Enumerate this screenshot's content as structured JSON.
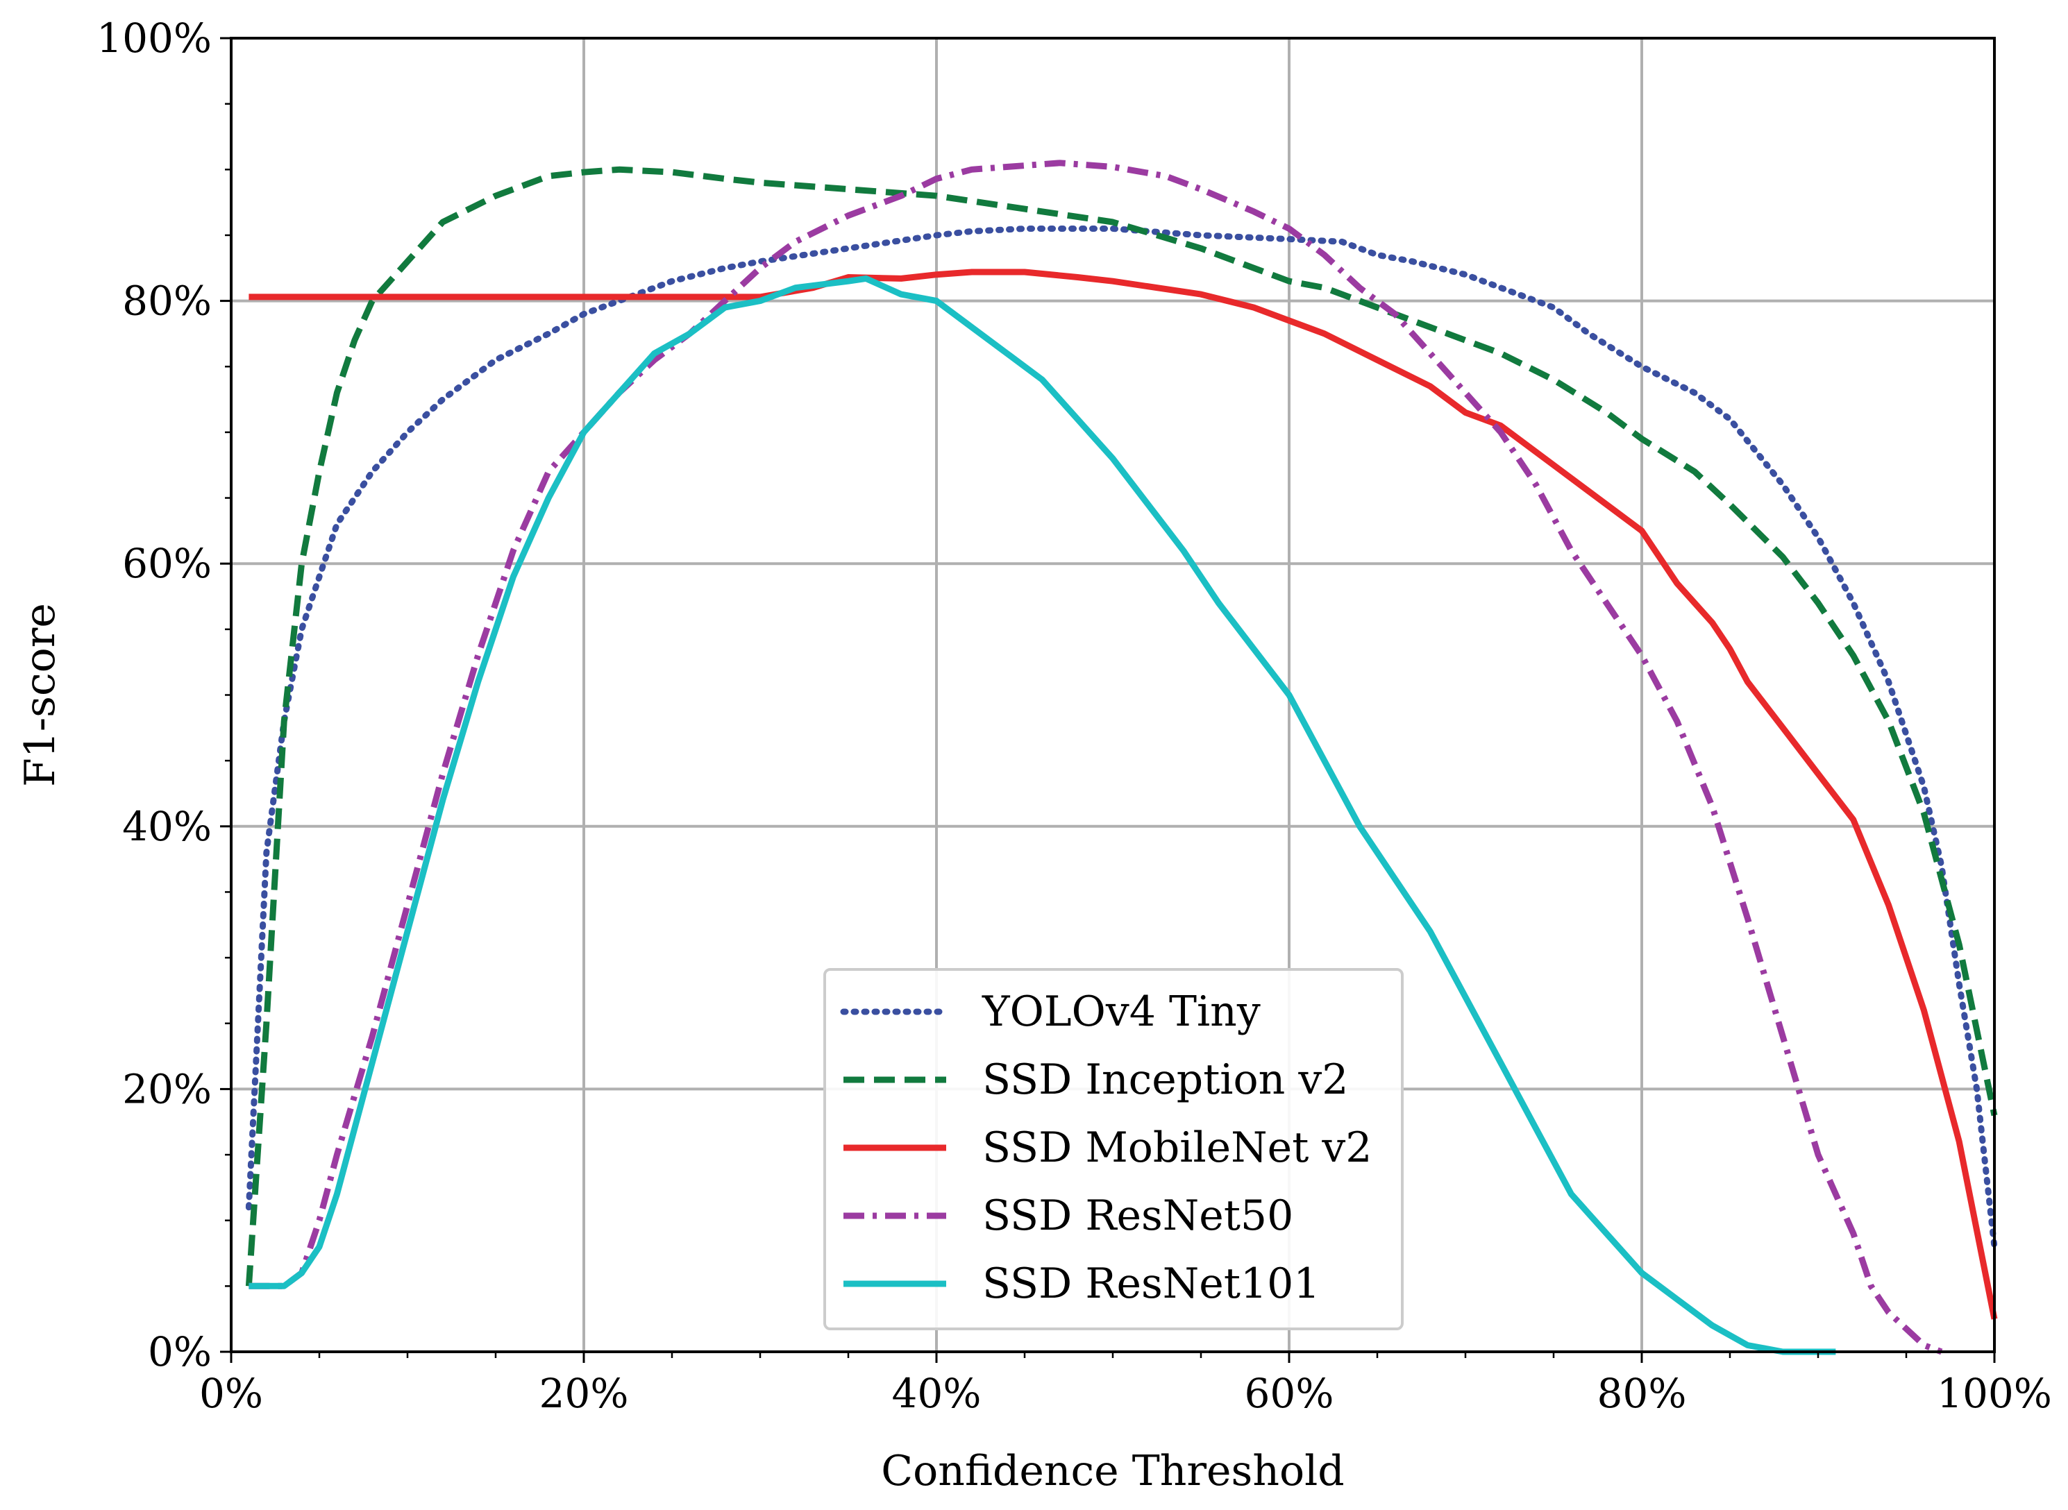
{
  "chart_data": {
    "type": "line",
    "xlabel": "Confidence Threshold",
    "ylabel": "F1-score",
    "xlim": [
      0,
      100
    ],
    "ylim": [
      0,
      100
    ],
    "x_ticks": [
      "0%",
      "20%",
      "40%",
      "60%",
      "80%",
      "100%"
    ],
    "y_ticks": [
      "0%",
      "20%",
      "40%",
      "60%",
      "80%",
      "100%"
    ],
    "grid": true,
    "legend_position": "lower center",
    "series": [
      {
        "name": "YOLOv4 Tiny",
        "color": "#3a4fa0",
        "style": "dotted",
        "points": [
          [
            1,
            11
          ],
          [
            2,
            38
          ],
          [
            3,
            48
          ],
          [
            4,
            55
          ],
          [
            5,
            59
          ],
          [
            6,
            63
          ],
          [
            8,
            67
          ],
          [
            10,
            70
          ],
          [
            12,
            72.5
          ],
          [
            15,
            75.5
          ],
          [
            18,
            77.5
          ],
          [
            20,
            79
          ],
          [
            22,
            80
          ],
          [
            25,
            81.5
          ],
          [
            28,
            82.5
          ],
          [
            30,
            83
          ],
          [
            35,
            84
          ],
          [
            40,
            85
          ],
          [
            42,
            85.3
          ],
          [
            45,
            85.5
          ],
          [
            50,
            85.5
          ],
          [
            55,
            85
          ],
          [
            60,
            84.7
          ],
          [
            63,
            84.5
          ],
          [
            65,
            83.5
          ],
          [
            67,
            83
          ],
          [
            70,
            82
          ],
          [
            73,
            80.5
          ],
          [
            75,
            79.5
          ],
          [
            77,
            77.5
          ],
          [
            80,
            75
          ],
          [
            83,
            73
          ],
          [
            85,
            71
          ],
          [
            88,
            66
          ],
          [
            90,
            62
          ],
          [
            92,
            57
          ],
          [
            94,
            51
          ],
          [
            96,
            43
          ],
          [
            97,
            37
          ],
          [
            98,
            28
          ],
          [
            99,
            20
          ],
          [
            100,
            8
          ]
        ]
      },
      {
        "name": "SSD Inception v2",
        "color": "#117a3e",
        "style": "dashed",
        "points": [
          [
            1,
            5
          ],
          [
            2,
            25
          ],
          [
            3,
            48
          ],
          [
            4,
            60
          ],
          [
            5,
            67
          ],
          [
            6,
            73
          ],
          [
            7,
            77
          ],
          [
            8,
            80
          ],
          [
            10,
            83
          ],
          [
            12,
            86
          ],
          [
            15,
            88
          ],
          [
            18,
            89.5
          ],
          [
            20,
            89.8
          ],
          [
            22,
            90
          ],
          [
            25,
            89.8
          ],
          [
            28,
            89.3
          ],
          [
            30,
            89
          ],
          [
            35,
            88.5
          ],
          [
            40,
            88
          ],
          [
            45,
            87
          ],
          [
            50,
            86
          ],
          [
            55,
            84
          ],
          [
            60,
            81.5
          ],
          [
            62,
            81
          ],
          [
            65,
            79.5
          ],
          [
            70,
            77
          ],
          [
            72,
            76
          ],
          [
            75,
            74
          ],
          [
            78,
            71.5
          ],
          [
            80,
            69.5
          ],
          [
            83,
            67
          ],
          [
            85,
            64.5
          ],
          [
            88,
            60.5
          ],
          [
            90,
            57
          ],
          [
            92,
            53
          ],
          [
            94,
            48
          ],
          [
            96,
            41
          ],
          [
            98,
            31
          ],
          [
            100,
            18
          ]
        ]
      },
      {
        "name": "SSD MobileNet v2",
        "color": "#e8292b",
        "style": "solid",
        "points": [
          [
            1,
            80.3
          ],
          [
            10,
            80.3
          ],
          [
            20,
            80.3
          ],
          [
            25,
            80.3
          ],
          [
            30,
            80.3
          ],
          [
            33,
            81
          ],
          [
            35,
            81.8
          ],
          [
            38,
            81.7
          ],
          [
            40,
            82
          ],
          [
            42,
            82.2
          ],
          [
            45,
            82.2
          ],
          [
            48,
            81.8
          ],
          [
            50,
            81.5
          ],
          [
            55,
            80.5
          ],
          [
            58,
            79.5
          ],
          [
            60,
            78.5
          ],
          [
            62,
            77.5
          ],
          [
            65,
            75.5
          ],
          [
            68,
            73.5
          ],
          [
            70,
            71.5
          ],
          [
            72,
            70.5
          ],
          [
            75,
            67.5
          ],
          [
            78,
            64.5
          ],
          [
            80,
            62.5
          ],
          [
            82,
            58.5
          ],
          [
            84,
            55.5
          ],
          [
            85,
            53.5
          ],
          [
            86,
            51
          ],
          [
            88,
            47.5
          ],
          [
            90,
            44
          ],
          [
            92,
            40.5
          ],
          [
            94,
            34
          ],
          [
            96,
            26
          ],
          [
            98,
            16
          ],
          [
            100,
            2.5
          ]
        ]
      },
      {
        "name": "SSD ResNet50",
        "color": "#9b3ba1",
        "style": "dashdot",
        "points": [
          [
            1,
            5
          ],
          [
            3,
            5
          ],
          [
            4,
            6
          ],
          [
            5,
            10
          ],
          [
            6,
            15
          ],
          [
            8,
            24
          ],
          [
            10,
            34
          ],
          [
            12,
            44
          ],
          [
            14,
            53
          ],
          [
            16,
            61
          ],
          [
            18,
            67
          ],
          [
            20,
            70
          ],
          [
            22,
            73
          ],
          [
            24,
            75.5
          ],
          [
            26,
            77.5
          ],
          [
            28,
            80
          ],
          [
            30,
            82.5
          ],
          [
            32,
            84.5
          ],
          [
            35,
            86.5
          ],
          [
            38,
            88
          ],
          [
            40,
            89.3
          ],
          [
            42,
            90
          ],
          [
            45,
            90.3
          ],
          [
            47,
            90.5
          ],
          [
            50,
            90.2
          ],
          [
            53,
            89.5
          ],
          [
            55,
            88.5
          ],
          [
            58,
            86.8
          ],
          [
            60,
            85.5
          ],
          [
            62,
            83.5
          ],
          [
            64,
            81
          ],
          [
            66,
            79
          ],
          [
            68,
            76
          ],
          [
            70,
            73
          ],
          [
            72,
            70
          ],
          [
            74,
            66
          ],
          [
            76,
            61
          ],
          [
            78,
            57
          ],
          [
            80,
            53
          ],
          [
            82,
            48
          ],
          [
            84,
            41.5
          ],
          [
            86,
            33
          ],
          [
            88,
            24
          ],
          [
            90,
            15
          ],
          [
            92,
            9
          ],
          [
            93,
            5
          ],
          [
            94,
            3
          ],
          [
            96,
            0.5
          ],
          [
            97,
            0
          ]
        ]
      },
      {
        "name": "SSD ResNet101",
        "color": "#1bbfc4",
        "style": "solid",
        "points": [
          [
            1,
            5
          ],
          [
            3,
            5
          ],
          [
            4,
            6
          ],
          [
            5,
            8
          ],
          [
            6,
            12
          ],
          [
            8,
            22
          ],
          [
            10,
            32
          ],
          [
            12,
            42
          ],
          [
            14,
            51
          ],
          [
            16,
            59
          ],
          [
            18,
            65
          ],
          [
            20,
            70
          ],
          [
            22,
            73
          ],
          [
            24,
            76
          ],
          [
            26,
            77.5
          ],
          [
            28,
            79.5
          ],
          [
            30,
            80
          ],
          [
            32,
            81
          ],
          [
            35,
            81.5
          ],
          [
            36,
            81.7
          ],
          [
            38,
            80.5
          ],
          [
            40,
            80
          ],
          [
            42,
            78
          ],
          [
            44,
            76
          ],
          [
            46,
            74
          ],
          [
            48,
            71
          ],
          [
            50,
            68
          ],
          [
            52,
            64.5
          ],
          [
            54,
            61
          ],
          [
            56,
            57
          ],
          [
            58,
            53.5
          ],
          [
            60,
            50
          ],
          [
            62,
            45
          ],
          [
            64,
            40
          ],
          [
            66,
            36
          ],
          [
            68,
            32
          ],
          [
            70,
            27
          ],
          [
            72,
            22
          ],
          [
            74,
            17
          ],
          [
            76,
            12
          ],
          [
            78,
            9
          ],
          [
            80,
            6
          ],
          [
            82,
            4
          ],
          [
            84,
            2
          ],
          [
            86,
            0.5
          ],
          [
            88,
            0
          ],
          [
            91,
            0
          ]
        ]
      }
    ]
  }
}
